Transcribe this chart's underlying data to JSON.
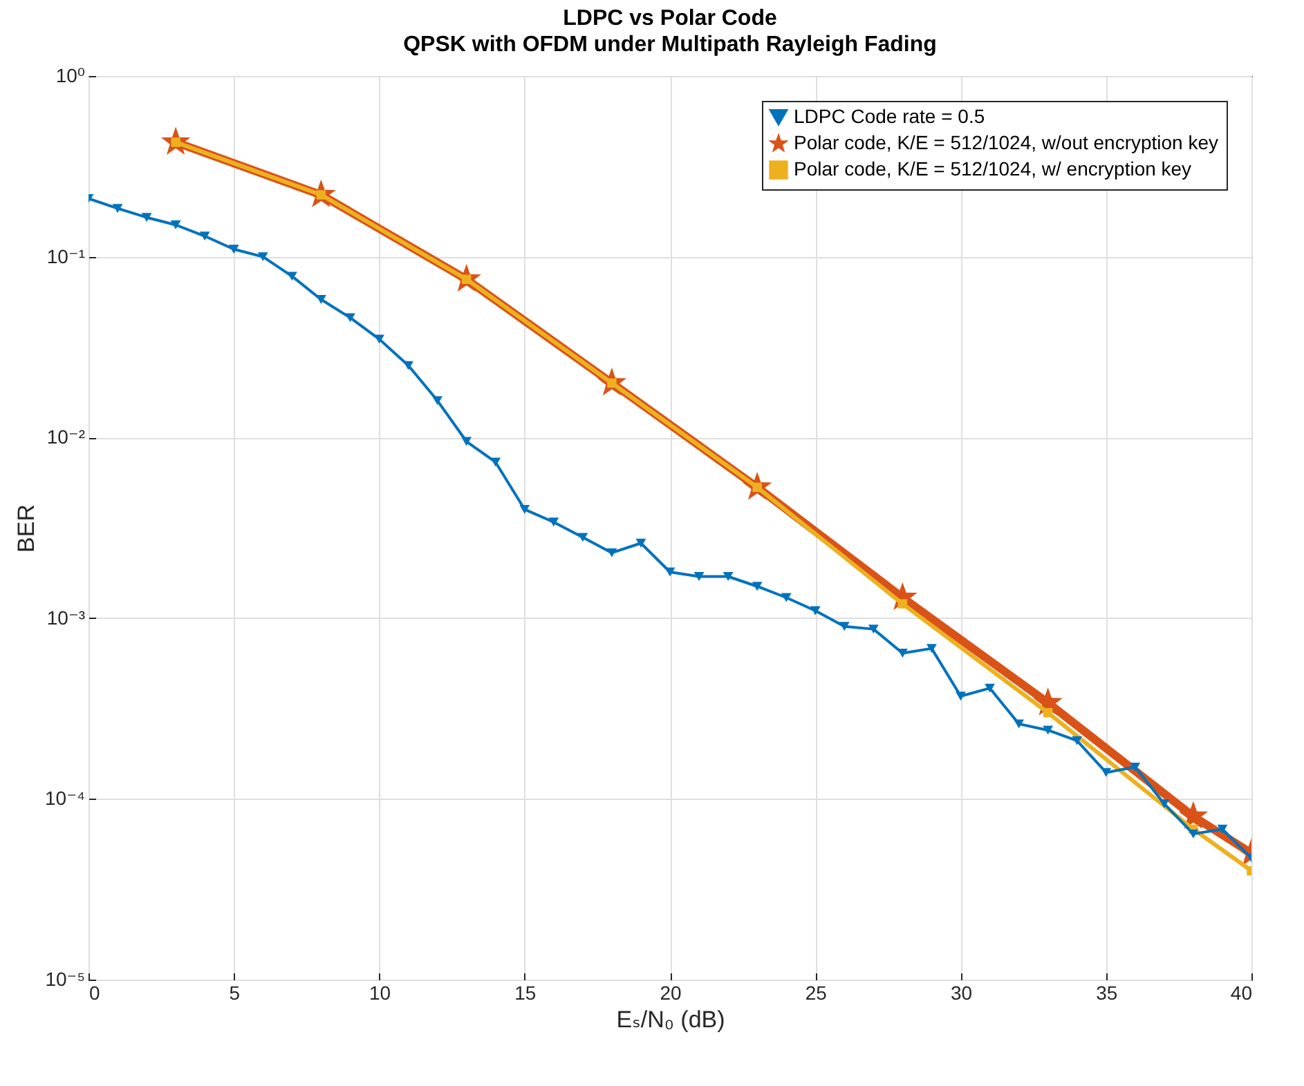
{
  "chart_data": {
    "type": "line",
    "title": "LDPC vs Polar Code",
    "subtitle": "QPSK with OFDM under Multipath Rayleigh Fading",
    "xlabel": "Eₛ/N₀  (dB)",
    "ylabel": "BER",
    "log": "y",
    "grid": true,
    "legend": "top right",
    "xlim": [
      0,
      40
    ],
    "xticks": [
      0,
      5,
      10,
      15,
      20,
      25,
      30,
      35,
      40
    ],
    "ylim": [
      1e-05,
      1
    ],
    "yticks": [
      {
        "value": 1e-05,
        "label": "10⁻⁵"
      },
      {
        "value": 0.0001,
        "label": "10⁻⁴"
      },
      {
        "value": 0.001,
        "label": "10⁻³"
      },
      {
        "value": 0.01,
        "label": "10⁻²"
      },
      {
        "value": 0.1,
        "label": "10⁻¹"
      },
      {
        "value": 1,
        "label": "10⁰"
      }
    ],
    "series": [
      {
        "name": "LDPC Code rate = 0.5",
        "color": "#0072bd",
        "marker": "triangle-down",
        "x": [
          0,
          1,
          2,
          3,
          4,
          5,
          6,
          7,
          8,
          9,
          10,
          11,
          12,
          13,
          14,
          15,
          16,
          17,
          18,
          19,
          20,
          21,
          22,
          23,
          24,
          25,
          26,
          27,
          28,
          29,
          30,
          31,
          32,
          33,
          34,
          35,
          36,
          37,
          38,
          39,
          40
        ],
        "values": [
          0.21,
          0.185,
          0.165,
          0.15,
          0.13,
          0.11,
          0.1,
          0.078,
          0.058,
          0.046,
          0.035,
          0.025,
          0.016,
          0.0095,
          0.0073,
          0.004,
          0.0034,
          0.0028,
          0.0023,
          0.0026,
          0.0018,
          0.0017,
          0.0017,
          0.0015,
          0.0013,
          0.0011,
          0.0009,
          0.00087,
          0.00064,
          0.00068,
          0.00037,
          0.00041,
          0.00026,
          0.00024,
          0.00021,
          0.00014,
          0.00015,
          9.4e-05,
          6.4e-05,
          6.8e-05,
          4.7e-05
        ]
      },
      {
        "name": "Polar code, K/E = 512/1024, w/out encryption key",
        "color": "#d95319",
        "marker": "star",
        "x": [
          3,
          8,
          13,
          18,
          23,
          28,
          33,
          38,
          40
        ],
        "values": [
          0.43,
          0.22,
          0.075,
          0.02,
          0.0053,
          0.0013,
          0.00034,
          8e-05,
          5e-05
        ]
      },
      {
        "name": "Polar code, K/E = 512/1024, w/ encryption key",
        "color": "#edb120",
        "marker": "square",
        "x": [
          3,
          8,
          13,
          18,
          23,
          28,
          33,
          38,
          40
        ],
        "values": [
          0.43,
          0.22,
          0.075,
          0.02,
          0.0053,
          0.0012,
          0.0003,
          6.8e-05,
          4e-05
        ]
      }
    ]
  }
}
